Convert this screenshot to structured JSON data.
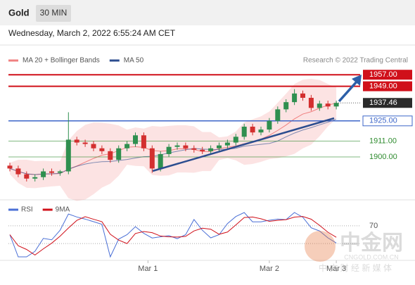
{
  "header": {
    "title": "Gold",
    "interval": "30 MIN",
    "datetime": "Wednesday, March 2, 2022 6:55:24 AM CET"
  },
  "chart_data": {
    "type": "candlestick",
    "legend": [
      {
        "name": "MA 20 + Bollinger Bands",
        "color": "#f08080"
      },
      {
        "name": "MA 50",
        "color": "#2c4d8f"
      }
    ],
    "source": "Research © 2022 Trading Central",
    "up_color": "#2f8f4f",
    "down_color": "#d32f2f",
    "ylim": [
      1875,
      1965
    ],
    "open": [
      1894,
      1892,
      1888,
      1885,
      1886,
      1890,
      1889,
      1890,
      1912,
      1910,
      1909,
      1906,
      1904,
      1898,
      1906,
      1909,
      1915,
      1906,
      1892,
      1902,
      1907,
      1908,
      1906,
      1905,
      1904,
      1906,
      1908,
      1910,
      1914,
      1921,
      1917,
      1919,
      1925,
      1933,
      1938,
      1944,
      1941,
      1934,
      1937,
      1935
    ],
    "high": [
      1896,
      1894,
      1890,
      1888,
      1892,
      1892,
      1891,
      1931,
      1914,
      1912,
      1911,
      1908,
      1906,
      1908,
      1911,
      1917,
      1917,
      1908,
      1904,
      1909,
      1910,
      1910,
      1908,
      1907,
      1908,
      1910,
      1912,
      1916,
      1923,
      1923,
      1921,
      1927,
      1935,
      1940,
      1947,
      1946,
      1943,
      1939,
      1939,
      1939
    ],
    "low": [
      1890,
      1886,
      1883,
      1883,
      1884,
      1887,
      1887,
      1888,
      1908,
      1907,
      1904,
      1902,
      1896,
      1896,
      1904,
      1907,
      1904,
      1889,
      1890,
      1900,
      1905,
      1904,
      1903,
      1902,
      1902,
      1904,
      1906,
      1908,
      1912,
      1915,
      1915,
      1917,
      1923,
      1931,
      1936,
      1939,
      1932,
      1932,
      1933,
      1933
    ],
    "close": [
      1892,
      1888,
      1885,
      1886,
      1890,
      1889,
      1890,
      1912,
      1910,
      1909,
      1906,
      1904,
      1898,
      1906,
      1909,
      1915,
      1906,
      1892,
      1902,
      1907,
      1908,
      1906,
      1905,
      1904,
      1906,
      1908,
      1910,
      1914,
      1921,
      1917,
      1919,
      1925,
      1933,
      1938,
      1944,
      1941,
      1934,
      1937,
      1935,
      1937.46
    ],
    "x_labels": [
      {
        "at": 16.5,
        "label": "Mar 1"
      },
      {
        "at": 31,
        "label": "Mar 2"
      },
      {
        "at": 39,
        "label": "Mar 3"
      }
    ],
    "levels": [
      {
        "value": 1957,
        "label": "1957.00",
        "style": "resistance",
        "color": "#d0101a"
      },
      {
        "value": 1949,
        "label": "1949.00",
        "style": "resistance",
        "color": "#d0101a"
      },
      {
        "value": 1937.46,
        "label": "1937.46",
        "style": "last",
        "color": "#2b2b2b"
      },
      {
        "value": 1925,
        "label": "1925.00",
        "style": "pivot",
        "color": "#3d66c9"
      },
      {
        "value": 1911,
        "label": "1911.00",
        "style": "support",
        "color": "#2e8b2e"
      },
      {
        "value": 1900,
        "label": "1900.00",
        "style": "support",
        "color": "#2e8b2e"
      }
    ],
    "rsi": {
      "legend": [
        {
          "name": "RSI",
          "color": "#4a6fd6"
        },
        {
          "name": "9MA",
          "color": "#d0101a"
        }
      ],
      "ylim": [
        0,
        100
      ],
      "yticks": [
        70
      ],
      "levels": [
        70,
        30
      ]
    }
  },
  "watermark": {
    "brand": "中金网",
    "domain": "CNGOLD.COM.CN",
    "slogan": "中 文 财 经 新 媒 体"
  }
}
